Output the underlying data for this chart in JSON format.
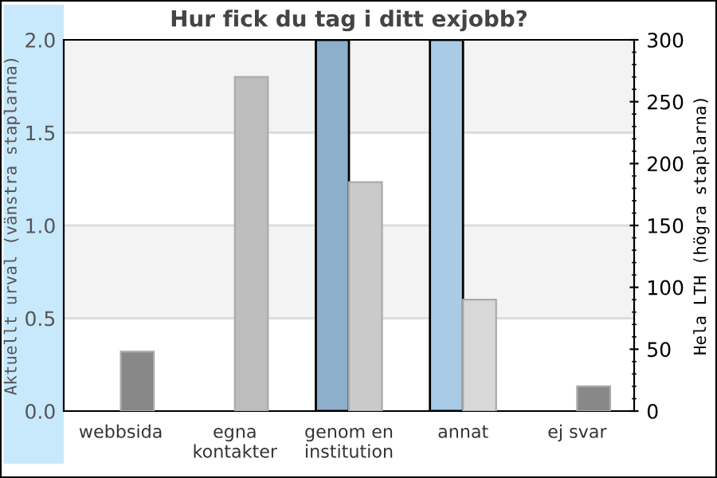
{
  "chart_data": {
    "type": "bar",
    "title": "Hur fick du tag i ditt exjobb?",
    "categories": [
      "webbsida",
      "egna\nkontakter",
      "genom en\ninstitution",
      "annat",
      "ej svar"
    ],
    "series": [
      {
        "colors": [
          "#8eafcb",
          "#8eafcb",
          "#8eafcb",
          "#a9cbe6",
          "#a9cbe6"
        ],
        "values": [
          0,
          0,
          2.0,
          2.0,
          0
        ]
      },
      {
        "colors": [
          "#888888",
          "#bdbdbd",
          "#cacaca",
          "#d8d8d8",
          "#888888"
        ],
        "values": [
          48,
          270,
          185,
          90,
          20
        ],
        "axis": "y2"
      }
    ],
    "ylabel": "Aktuellt urval (vänstra staplarna)",
    "y2label": "Hela LTH (högra staplarna)",
    "ylim": [
      0,
      2.0
    ],
    "yticks": [
      {
        "value": 0,
        "label": "0.0"
      },
      0.5,
      {
        "value": 1,
        "label": "1.0"
      },
      1.5,
      {
        "value": 2,
        "label": "2.0"
      }
    ],
    "y2lim": [
      0,
      300
    ],
    "y2ticks": [
      0,
      50,
      100,
      150,
      200,
      250,
      300
    ],
    "bands": [
      {
        "axis": "y",
        "from": 0.5,
        "to": 1.0,
        "color": "#f3f3f3"
      },
      {
        "axis": "y",
        "from": 1.5,
        "to": 2.0,
        "color": "#f3f3f3"
      }
    ],
    "grid": "y"
  }
}
